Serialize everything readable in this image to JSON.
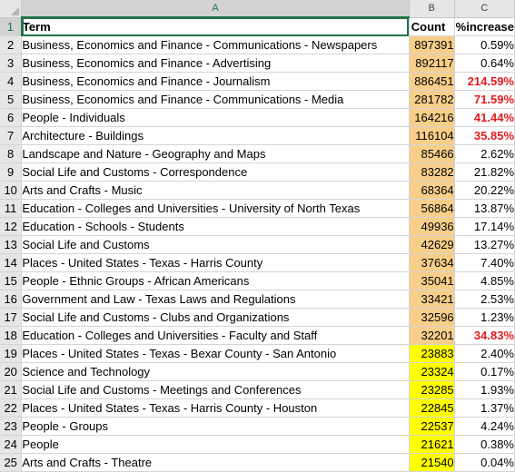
{
  "sheet": {
    "columns": [
      "A",
      "B",
      "C"
    ],
    "headers": {
      "term": "Term",
      "count": "Count",
      "increase": "%increase"
    },
    "colors": {
      "orange_fill": "#f8cf8a",
      "yellow_fill": "#ffff00",
      "red_text": "#e31a1c"
    },
    "rows": [
      {
        "num": "2",
        "term": "Business, Economics and Finance - Communications - Newspapers",
        "count": "897391",
        "increase": "0.59%",
        "fill": "orange",
        "highlight": false
      },
      {
        "num": "3",
        "term": "Business, Economics and Finance - Advertising",
        "count": "892117",
        "increase": "0.64%",
        "fill": "orange",
        "highlight": false
      },
      {
        "num": "4",
        "term": "Business, Economics and Finance - Journalism",
        "count": "886451",
        "increase": "214.59%",
        "fill": "orange",
        "highlight": true
      },
      {
        "num": "5",
        "term": "Business, Economics and Finance - Communications - Media",
        "count": "281782",
        "increase": "71.59%",
        "fill": "orange",
        "highlight": true
      },
      {
        "num": "6",
        "term": "People - Individuals",
        "count": "164216",
        "increase": "41.44%",
        "fill": "orange",
        "highlight": true
      },
      {
        "num": "7",
        "term": "Architecture - Buildings",
        "count": "116104",
        "increase": "35.85%",
        "fill": "orange",
        "highlight": true
      },
      {
        "num": "8",
        "term": "Landscape and Nature - Geography and Maps",
        "count": "85466",
        "increase": "2.62%",
        "fill": "orange",
        "highlight": false
      },
      {
        "num": "9",
        "term": "Social Life and Customs - Correspondence",
        "count": "83282",
        "increase": "21.82%",
        "fill": "orange",
        "highlight": false
      },
      {
        "num": "10",
        "term": "Arts and Crafts - Music",
        "count": "68364",
        "increase": "20.22%",
        "fill": "orange",
        "highlight": false
      },
      {
        "num": "11",
        "term": "Education - Colleges and Universities - University of North Texas",
        "count": "56864",
        "increase": "13.87%",
        "fill": "orange",
        "highlight": false
      },
      {
        "num": "12",
        "term": "Education - Schools - Students",
        "count": "49936",
        "increase": "17.14%",
        "fill": "orange",
        "highlight": false
      },
      {
        "num": "13",
        "term": "Social Life and Customs",
        "count": "42629",
        "increase": "13.27%",
        "fill": "orange",
        "highlight": false
      },
      {
        "num": "14",
        "term": "Places - United States - Texas - Harris County",
        "count": "37634",
        "increase": "7.40%",
        "fill": "orange",
        "highlight": false
      },
      {
        "num": "15",
        "term": "People - Ethnic Groups - African Americans",
        "count": "35041",
        "increase": "4.85%",
        "fill": "orange",
        "highlight": false
      },
      {
        "num": "16",
        "term": "Government and Law - Texas Laws and Regulations",
        "count": "33421",
        "increase": "2.53%",
        "fill": "orange",
        "highlight": false
      },
      {
        "num": "17",
        "term": "Social Life and Customs - Clubs and Organizations",
        "count": "32596",
        "increase": "1.23%",
        "fill": "orange",
        "highlight": false
      },
      {
        "num": "18",
        "term": "Education - Colleges and Universities - Faculty and Staff",
        "count": "32201",
        "increase": "34.83%",
        "fill": "orange",
        "highlight": true
      },
      {
        "num": "19",
        "term": "Places - United States - Texas - Bexar County - San Antonio",
        "count": "23883",
        "increase": "2.40%",
        "fill": "yellow",
        "highlight": false
      },
      {
        "num": "20",
        "term": "Science and Technology",
        "count": "23324",
        "increase": "0.17%",
        "fill": "yellow",
        "highlight": false
      },
      {
        "num": "21",
        "term": "Social Life and Customs - Meetings and Conferences",
        "count": "23285",
        "increase": "1.93%",
        "fill": "yellow",
        "highlight": false
      },
      {
        "num": "22",
        "term": "Places - United States - Texas - Harris County - Houston",
        "count": "22845",
        "increase": "1.37%",
        "fill": "yellow",
        "highlight": false
      },
      {
        "num": "23",
        "term": "People - Groups",
        "count": "22537",
        "increase": "4.24%",
        "fill": "yellow",
        "highlight": false
      },
      {
        "num": "24",
        "term": "People",
        "count": "21621",
        "increase": "0.38%",
        "fill": "yellow",
        "highlight": false
      },
      {
        "num": "25",
        "term": "Arts and Crafts - Theatre",
        "count": "21540",
        "increase": "0.04%",
        "fill": "yellow",
        "highlight": false
      }
    ]
  }
}
